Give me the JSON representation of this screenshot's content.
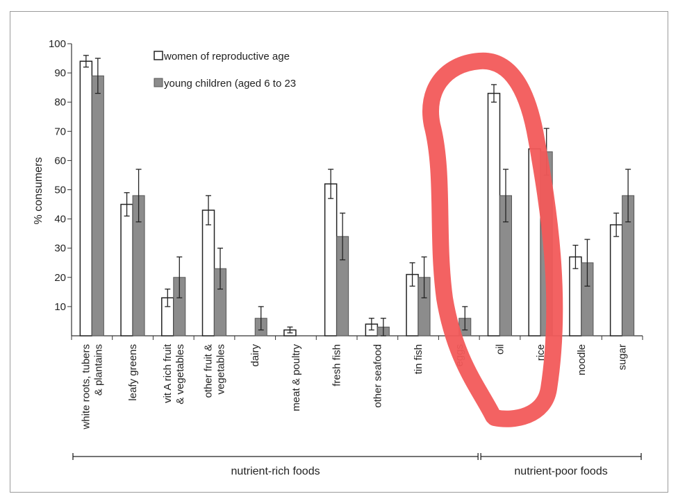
{
  "chart_data": {
    "type": "bar",
    "ylabel": "% consumers",
    "ylim": [
      0,
      100
    ],
    "yticks": [
      "100",
      "90",
      "80",
      "70",
      "60",
      "50",
      "40",
      "30",
      "20",
      "10"
    ],
    "categories": [
      [
        "white roots, tubers",
        "& plantains"
      ],
      [
        "leafy greens"
      ],
      [
        "vit A rich fruit",
        "& vegetables"
      ],
      [
        "other fruit &",
        "vegetables"
      ],
      [
        "dairy"
      ],
      [
        "meat & poultry"
      ],
      [
        "fresh fish"
      ],
      [
        "other seafood"
      ],
      [
        "tin fish"
      ],
      [
        "eggs"
      ],
      [
        "oil"
      ],
      [
        "rice"
      ],
      [
        "noodle"
      ],
      [
        "sugar"
      ]
    ],
    "series": [
      {
        "name": "women of reproductive age",
        "color": "#ffffff",
        "values": [
          94,
          45,
          13,
          43,
          0,
          2,
          52,
          4,
          21,
          0,
          83,
          64,
          27,
          38
        ],
        "err": [
          2,
          4,
          3,
          5,
          0,
          1,
          5,
          2,
          4,
          0,
          3,
          0,
          4,
          4
        ]
      },
      {
        "name": "young children (aged 6 to 23",
        "color": "#8c8c8c",
        "values": [
          89,
          48,
          20,
          23,
          6,
          0,
          34,
          3,
          20,
          6,
          48,
          63,
          25,
          48
        ],
        "err": [
          6,
          9,
          7,
          7,
          4,
          0,
          8,
          3,
          7,
          4,
          9,
          8,
          8,
          9
        ]
      }
    ],
    "groups": [
      {
        "label": "nutrient-rich foods",
        "from": 0,
        "to": 9
      },
      {
        "label": "nutrient-poor foods",
        "from": 10,
        "to": 13
      }
    ],
    "annotation": {
      "type": "hand-drawn loop",
      "color": "#f25a5a",
      "encloses": [
        "oil",
        "rice"
      ]
    }
  }
}
